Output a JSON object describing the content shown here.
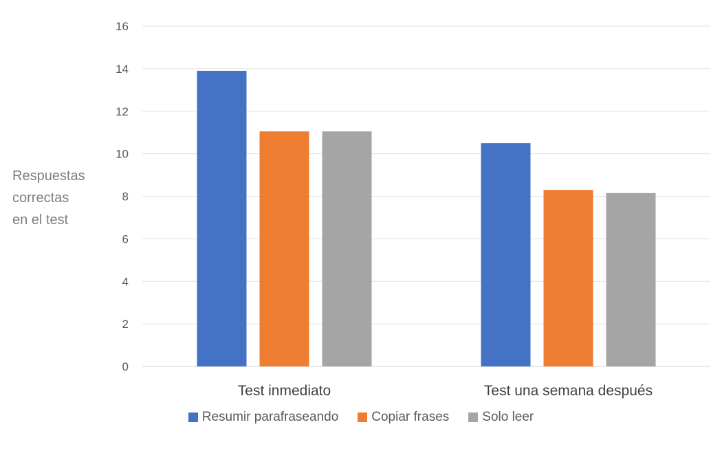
{
  "chart_data": {
    "type": "bar",
    "categories": [
      "Test inmediato",
      "Test una semana después"
    ],
    "series": [
      {
        "name": "Resumir parafraseando",
        "values": [
          13.9,
          10.5
        ],
        "color": "#4472C4"
      },
      {
        "name": "Copiar frases",
        "values": [
          11.05,
          8.3
        ],
        "color": "#ED7D31"
      },
      {
        "name": "Solo leer",
        "values": [
          11.05,
          8.15
        ],
        "color": "#A5A5A5"
      }
    ],
    "ylabel_lines": [
      "Respuestas",
      "correctas",
      "en el test"
    ],
    "ylim": [
      0,
      16
    ],
    "yticks": [
      0,
      2,
      4,
      6,
      8,
      10,
      12,
      14,
      16
    ],
    "grid": true,
    "legend": "bottom"
  }
}
